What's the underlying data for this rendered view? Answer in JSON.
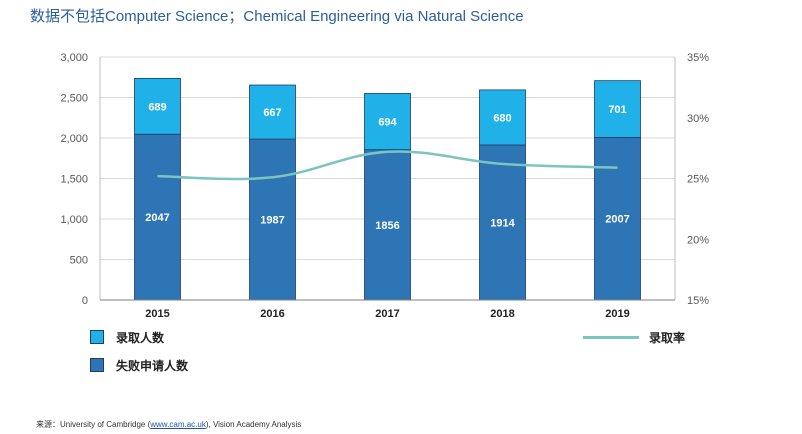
{
  "subtitle": "数据不包括Computer Science；Chemical Engineering via Natural Science",
  "colors": {
    "admitted": "#1fb1e8",
    "failed": "#2e75b6",
    "rate_line": "#7cc4bf",
    "grid": "#d9d9d9",
    "axis_text": "#595959"
  },
  "chart_data": {
    "type": "bar",
    "stacked": true,
    "categories": [
      "2015",
      "2016",
      "2017",
      "2018",
      "2019"
    ],
    "series": [
      {
        "name": "失败申请人数",
        "values": [
          2047,
          1987,
          1856,
          1914,
          2007
        ],
        "axis": "left"
      },
      {
        "name": "录取人数",
        "values": [
          689,
          667,
          694,
          680,
          701
        ],
        "axis": "left"
      },
      {
        "name": "录取率",
        "type": "line",
        "values": [
          25.2,
          25.1,
          27.2,
          26.2,
          25.9
        ],
        "axis": "right"
      }
    ],
    "ylim": [
      0,
      3000
    ],
    "yticks": [
      "0",
      "500",
      "1,000",
      "1,500",
      "2,000",
      "2,500",
      "3,000"
    ],
    "yticks_values": [
      0,
      500,
      1000,
      1500,
      2000,
      2500,
      3000
    ],
    "y2lim": [
      15,
      35
    ],
    "y2ticks": [
      "15%",
      "20%",
      "25%",
      "30%",
      "35%"
    ],
    "y2ticks_values": [
      15,
      20,
      25,
      30,
      35
    ],
    "grid": true,
    "legend": [
      {
        "label": "录取人数",
        "kind": "box",
        "series": 1,
        "placement": "bottom-left"
      },
      {
        "label": "失败申请人数",
        "kind": "box",
        "series": 0,
        "placement": "bottom-left"
      },
      {
        "label": "录取率",
        "kind": "line",
        "series": 2,
        "placement": "bottom-right"
      }
    ]
  },
  "source": {
    "prefix": "来源：",
    "text1": "University of Cambridge (",
    "link": "www.cam.ac.uk",
    "text2": "), Vision Academy Analysis"
  }
}
